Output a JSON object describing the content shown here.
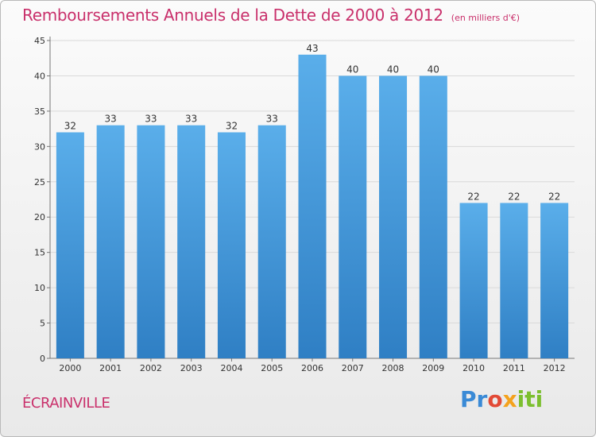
{
  "title": "Remboursements Annuels de la Dette de 2000 à 2012",
  "unit_note": "(en milliers d'€)",
  "city": "ÉCRAINVILLE",
  "logo": {
    "parts": [
      "Pr",
      "o",
      "x",
      "iti"
    ]
  },
  "colors": {
    "title": "#c9306b",
    "bar_top": "#5aaeea",
    "bar_bottom": "#2f7fc4",
    "gridline": "#d9d9d9"
  },
  "chart_data": {
    "type": "bar",
    "title": "Remboursements Annuels de la Dette de 2000 à 2012",
    "xlabel": "",
    "ylabel": "",
    "categories": [
      "2000",
      "2001",
      "2002",
      "2003",
      "2004",
      "2005",
      "2006",
      "2007",
      "2008",
      "2009",
      "2010",
      "2011",
      "2012"
    ],
    "values": [
      32,
      33,
      33,
      33,
      32,
      33,
      43,
      40,
      40,
      40,
      22,
      22,
      22
    ],
    "ylim": [
      0,
      45
    ],
    "yticks": [
      0,
      5,
      10,
      15,
      20,
      25,
      30,
      35,
      40,
      45
    ],
    "grid": true,
    "legend": "none"
  }
}
